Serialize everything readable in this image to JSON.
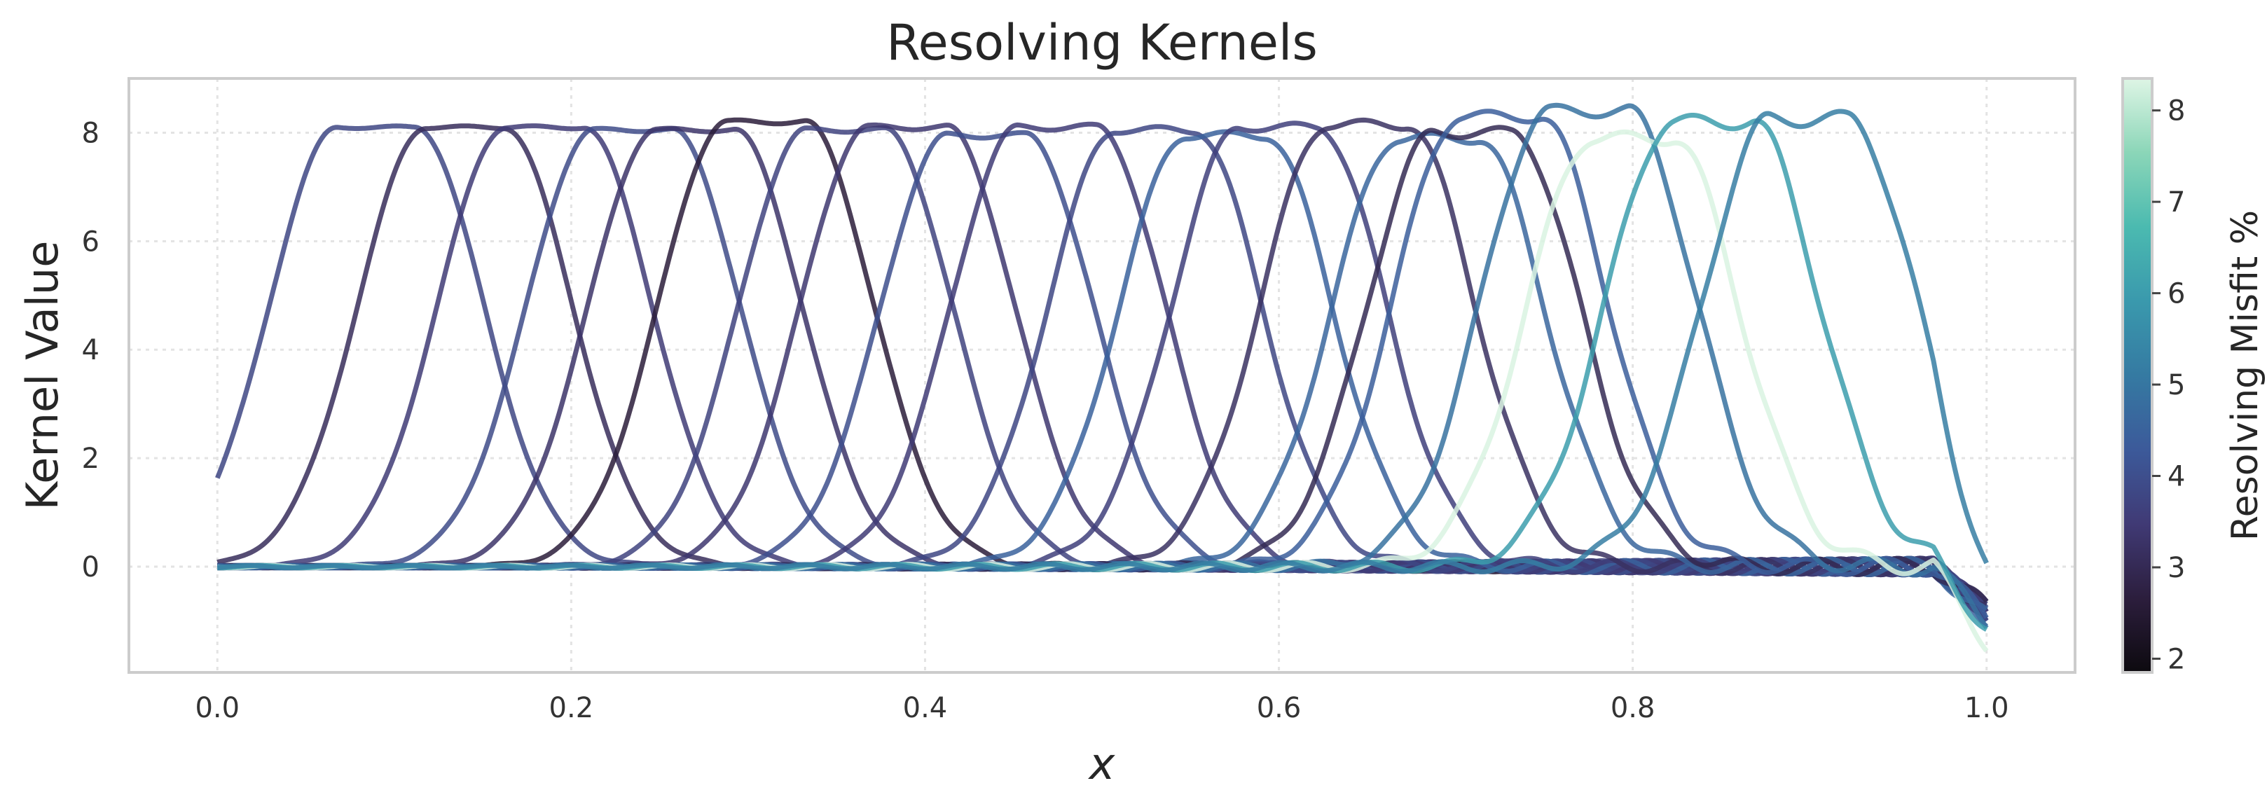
{
  "chart_data": {
    "type": "line",
    "title": "Resolving Kernels",
    "xlabel": "x",
    "ylabel": "Kernel Value",
    "xlim": [
      -0.05,
      1.05
    ],
    "ylim": [
      -1.95,
      9.0
    ],
    "x_ticks": [
      0.0,
      0.2,
      0.4,
      0.6,
      0.8,
      1.0
    ],
    "x_tick_labels": [
      "0.0",
      "0.2",
      "0.4",
      "0.6",
      "0.8",
      "1.0"
    ],
    "y_ticks": [
      0,
      2,
      4,
      6,
      8
    ],
    "y_tick_labels": [
      "0",
      "2",
      "4",
      "6",
      "8"
    ],
    "grid": true,
    "colorbar": {
      "label": "Resolving Misfit %",
      "range": [
        1.85,
        8.35
      ],
      "ticks": [
        2,
        3,
        4,
        5,
        6,
        7,
        8
      ],
      "tick_labels": [
        "2",
        "3",
        "4",
        "5",
        "6",
        "7",
        "8"
      ],
      "colormap": [
        "#0d0a0f",
        "#2c1e3d",
        "#403a75",
        "#3c5a9a",
        "#357aa2",
        "#3a99ad",
        "#4bbab0",
        "#8bd6b8",
        "#def5e5"
      ]
    },
    "series": [
      {
        "center": 0.09,
        "peak": 8.1,
        "misfit": 3.8
      },
      {
        "center": 0.14,
        "peak": 8.1,
        "misfit": 3.1
      },
      {
        "center": 0.185,
        "peak": 8.1,
        "misfit": 3.5
      },
      {
        "center": 0.235,
        "peak": 8.05,
        "misfit": 3.9
      },
      {
        "center": 0.27,
        "peak": 8.05,
        "misfit": 3.3
      },
      {
        "center": 0.31,
        "peak": 8.2,
        "misfit": 2.6
      },
      {
        "center": 0.355,
        "peak": 8.05,
        "misfit": 3.7
      },
      {
        "center": 0.39,
        "peak": 8.1,
        "misfit": 3.4
      },
      {
        "center": 0.435,
        "peak": 7.95,
        "misfit": 4.0
      },
      {
        "center": 0.475,
        "peak": 8.1,
        "misfit": 3.5
      },
      {
        "center": 0.53,
        "peak": 8.05,
        "misfit": 3.8
      },
      {
        "center": 0.57,
        "peak": 7.95,
        "misfit": 4.5
      },
      {
        "center": 0.6,
        "peak": 8.1,
        "misfit": 3.6
      },
      {
        "center": 0.65,
        "peak": 8.15,
        "misfit": 3.2
      },
      {
        "center": 0.69,
        "peak": 7.9,
        "misfit": 4.6
      },
      {
        "center": 0.71,
        "peak": 8.0,
        "misfit": 3.0
      },
      {
        "center": 0.725,
        "peak": 8.3,
        "misfit": 4.4
      },
      {
        "center": 0.775,
        "peak": 8.4,
        "misfit": 4.9
      },
      {
        "center": 0.8,
        "peak": 7.9,
        "misfit": 8.3
      },
      {
        "center": 0.845,
        "peak": 8.2,
        "misfit": 6.0
      },
      {
        "center": 0.9,
        "peak": 8.25,
        "misfit": 5.2
      }
    ]
  }
}
